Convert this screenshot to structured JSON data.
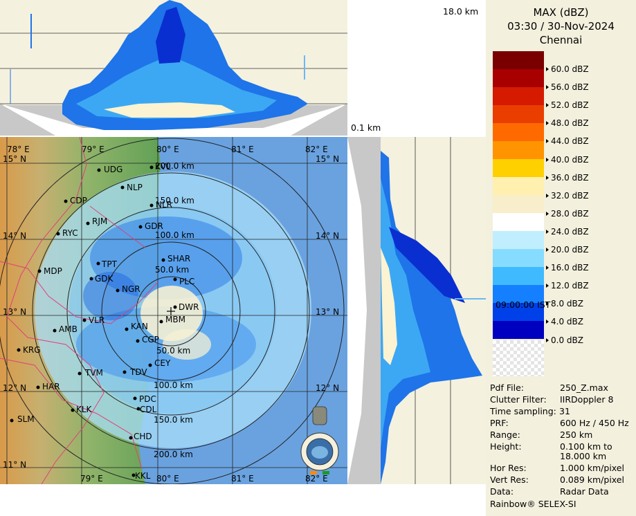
{
  "header": {
    "product": "MAX (dBZ)",
    "datetime": "03:30 / 30-Nov-2024",
    "station": "Chennai"
  },
  "top_height_label": "18.0 km",
  "bottom_height_label": "0.1 km",
  "time_label": "09:00:00 IST",
  "legend": {
    "colors": [
      "#7a0000",
      "#a80000",
      "#d51a00",
      "#ea3e00",
      "#ff6a00",
      "#ff9400",
      "#ffd000",
      "#fff0b0",
      "#f8eecb",
      "#ffffff",
      "#c0eeff",
      "#86dcff",
      "#3fbaff",
      "#1580ff",
      "#0040e8",
      "#0000c0"
    ],
    "labels": [
      "60.0 dBZ",
      "56.0 dBZ",
      "52.0 dBZ",
      "48.0 dBZ",
      "44.0 dBZ",
      "40.0 dBZ",
      "36.0 dBZ",
      "32.0 dBZ",
      "28.0 dBZ",
      "24.0 dBZ",
      "20.0 dBZ",
      "16.0 dBZ",
      "12.0 dBZ",
      "8.0 dBZ",
      "4.0 dBZ",
      "0.0 dBZ"
    ]
  },
  "info": [
    {
      "key": "Pdf File:",
      "value": "250_Z.max"
    },
    {
      "key": "Clutter Filter:",
      "value": "IIRDoppler 8"
    },
    {
      "key": "Time sampling:",
      "value": "31"
    },
    {
      "key": "PRF:",
      "value": "600 Hz / 450 Hz"
    },
    {
      "key": "Range:",
      "value": "250 km"
    },
    {
      "key": "Height:",
      "value": "0.100 km to"
    },
    {
      "key": "",
      "value": "18.000 km"
    },
    {
      "key": "Hor Res:",
      "value": "1.000 km/pixel"
    },
    {
      "key": "Vert Res:",
      "value": "0.089 km/pixel"
    },
    {
      "key": "Data:",
      "value": "Radar Data"
    }
  ],
  "footer": "Rainbow® SELEX-SI",
  "map": {
    "lon_labels": [
      "78° E",
      "79° E",
      "80° E",
      "81° E",
      "82° E"
    ],
    "lon_labels_bottom": [
      "79° E",
      "80° E",
      "81° E",
      "82° E"
    ],
    "lat_labels": [
      "15° N",
      "14° N",
      "13° N",
      "12° N",
      "11° N"
    ],
    "range_labels": [
      "50.0 km",
      "100.0 km",
      "150.0 km",
      "200.0 km"
    ],
    "range_labels_south": [
      "50.0 km",
      "100.0 km",
      "150.0 km",
      "200.0 km"
    ],
    "cities": [
      "UDG",
      "KVL",
      "NLP",
      "CDP",
      "NLR",
      "RJM",
      "GDR",
      "RYC",
      "TPT",
      "SHAR",
      "MDP",
      "GDK",
      "PLC",
      "NGR",
      "DWR",
      "MBM",
      "KAN",
      "VLR",
      "AMB",
      "CGP",
      "KRG",
      "CEY",
      "TVM",
      "TDV",
      "HAR",
      "PDC",
      "KLK",
      "CDL",
      "SLM",
      "CHD",
      "KKL"
    ]
  }
}
